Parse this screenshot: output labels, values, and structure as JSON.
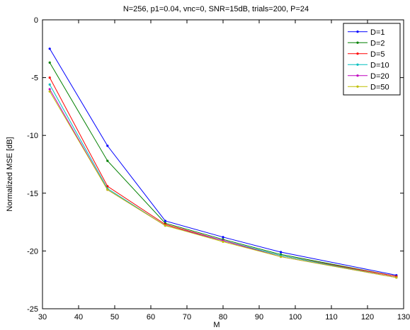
{
  "chart_data": {
    "type": "line",
    "title": "N=256, p1=0.04, vnc=0, SNR=15dB, trials=200, P=24",
    "xlabel": "M",
    "ylabel": "Normalized MSE [dB]",
    "xlim": [
      30,
      130
    ],
    "ylim": [
      -25,
      0
    ],
    "xticks": [
      30,
      40,
      50,
      60,
      70,
      80,
      90,
      100,
      110,
      120,
      130
    ],
    "yticks": [
      0,
      -5,
      -10,
      -15,
      -20,
      -25
    ],
    "grid": false,
    "legend_position": "top-right",
    "x": [
      32,
      48,
      64,
      80,
      96,
      128
    ],
    "series": [
      {
        "name": "D=1",
        "color": "#0000ff",
        "values": [
          -2.5,
          -10.9,
          -17.4,
          -18.8,
          -20.1,
          -22.1
        ]
      },
      {
        "name": "D=2",
        "color": "#008000",
        "values": [
          -3.7,
          -12.2,
          -17.6,
          -19.0,
          -20.3,
          -22.2
        ]
      },
      {
        "name": "D=5",
        "color": "#ff0000",
        "values": [
          -5.0,
          -14.4,
          -17.7,
          -19.1,
          -20.4,
          -22.2
        ]
      },
      {
        "name": "D=10",
        "color": "#00bfbf",
        "values": [
          -5.6,
          -14.6,
          -17.8,
          -19.1,
          -20.4,
          -22.3
        ]
      },
      {
        "name": "D=20",
        "color": "#bf00bf",
        "values": [
          -6.0,
          -14.7,
          -17.8,
          -19.1,
          -20.5,
          -22.3
        ]
      },
      {
        "name": "D=50",
        "color": "#bfbf00",
        "values": [
          -6.2,
          -14.7,
          -17.8,
          -19.2,
          -20.5,
          -22.3
        ]
      }
    ]
  }
}
